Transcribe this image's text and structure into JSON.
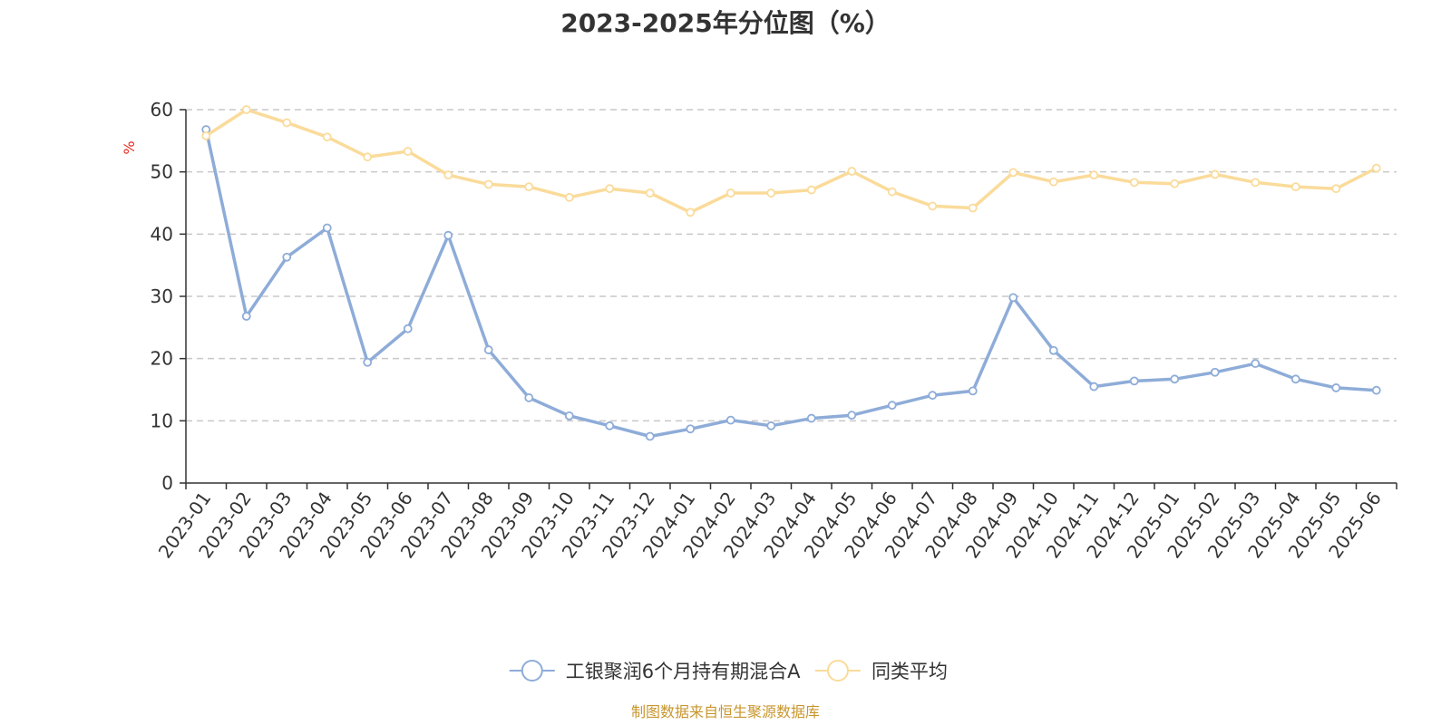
{
  "chart_data": {
    "type": "line",
    "title": "2023-2025年分位图（%）",
    "ylabel": "%",
    "xlabel": "",
    "ylim": [
      0,
      60
    ],
    "yticks": [
      0,
      10,
      20,
      30,
      40,
      50,
      60
    ],
    "grid": true,
    "legend_position": "bottom",
    "categories": [
      "2023-01",
      "2023-02",
      "2023-03",
      "2023-04",
      "2023-05",
      "2023-06",
      "2023-07",
      "2023-08",
      "2023-09",
      "2023-10",
      "2023-11",
      "2023-12",
      "2024-01",
      "2024-02",
      "2024-03",
      "2024-04",
      "2024-05",
      "2024-06",
      "2024-07",
      "2024-08",
      "2024-09",
      "2024-10",
      "2024-11",
      "2024-12",
      "2025-01",
      "2025-02",
      "2025-03",
      "2025-04",
      "2025-05",
      "2025-06"
    ],
    "series": [
      {
        "name": "工银聚润6个月持有期混合A",
        "color": "#8eacd8",
        "values": [
          56.8,
          26.8,
          36.3,
          41.0,
          19.4,
          24.8,
          39.8,
          21.4,
          13.7,
          10.8,
          9.2,
          7.5,
          8.7,
          10.1,
          9.2,
          10.4,
          10.9,
          12.5,
          14.1,
          14.8,
          29.8,
          21.3,
          15.5,
          16.4,
          16.7,
          17.8,
          19.2,
          16.7,
          15.3,
          14.9
        ]
      },
      {
        "name": "同类平均",
        "color": "#fadb9a",
        "values": [
          55.8,
          60.0,
          57.9,
          55.6,
          52.4,
          53.3,
          49.5,
          48.0,
          47.6,
          45.9,
          47.3,
          46.6,
          43.5,
          46.6,
          46.6,
          47.1,
          50.1,
          46.8,
          44.5,
          44.2,
          49.9,
          48.4,
          49.5,
          48.3,
          48.1,
          49.6,
          48.3,
          47.6,
          47.3,
          50.6
        ]
      }
    ]
  },
  "source_note": "制图数据来自恒生聚源数据库",
  "colors": {
    "axis": "#333333",
    "grid": "#c8c8c8",
    "unit_label": "#e8291c",
    "source_note": "#c8962d"
  }
}
